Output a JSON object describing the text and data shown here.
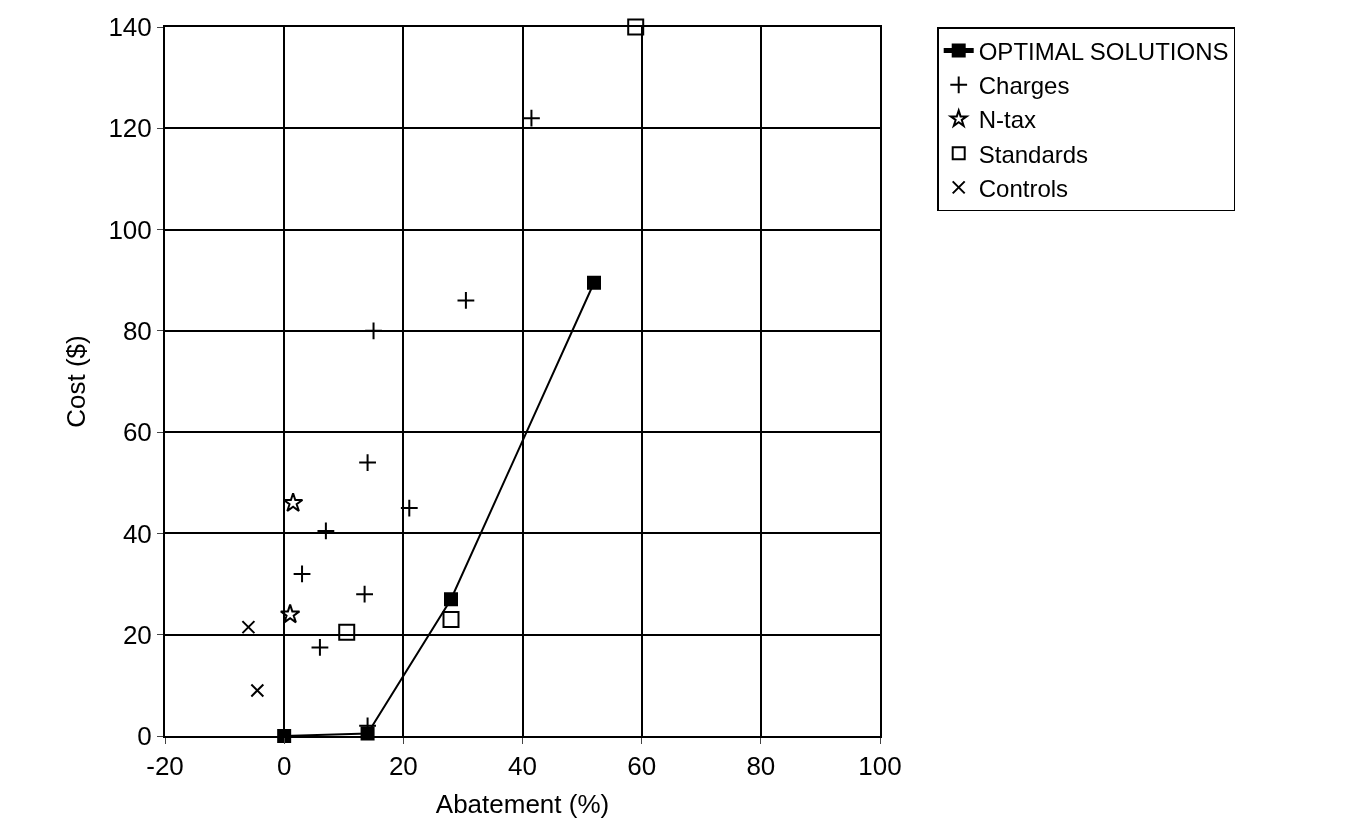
{
  "chart_data": {
    "type": "scatter",
    "xlabel": "Abatement (%)",
    "ylabel": "Cost ($)",
    "xlim": [
      -20,
      100
    ],
    "xticks": [
      -20,
      0,
      20,
      40,
      60,
      80,
      100
    ],
    "ylim": [
      0,
      140
    ],
    "yticks": [
      0,
      20,
      40,
      60,
      80,
      100,
      120,
      140
    ],
    "grid": true,
    "legend": "top right",
    "series": [
      {
        "name": "OPTIMAL SOLUTIONS",
        "type": "line",
        "marker": "square",
        "color": "#000000",
        "x": [
          0,
          14,
          28,
          52
        ],
        "values": [
          0,
          0.5,
          27,
          89.5
        ]
      },
      {
        "name": "Charges",
        "marker": "cross",
        "color": "#000000",
        "x": [
          41.5,
          30.5,
          15,
          14,
          21,
          7,
          3,
          13.5,
          6,
          14
        ],
        "values": [
          122,
          86,
          80,
          54,
          45,
          40.5,
          32,
          28,
          17.5,
          2
        ]
      },
      {
        "name": "N-tax",
        "marker": "star",
        "color": "#000000",
        "x": [
          1.5,
          1
        ],
        "values": [
          46,
          24
        ]
      },
      {
        "name": "Standards",
        "marker": "square-open",
        "color": "#000000",
        "x": [
          59,
          10.5,
          28
        ],
        "values": [
          140,
          20.5,
          23
        ]
      },
      {
        "name": "Controls",
        "marker": "x",
        "color": "#000000",
        "x": [
          -6,
          -4.5
        ],
        "values": [
          21.5,
          9
        ]
      }
    ]
  }
}
